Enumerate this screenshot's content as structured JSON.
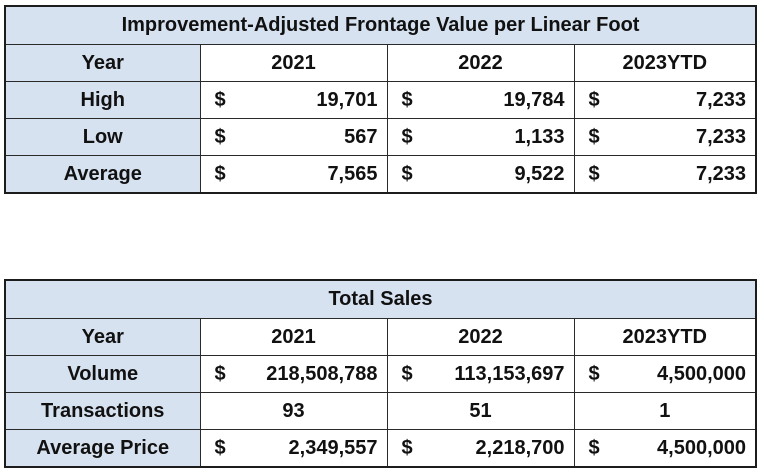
{
  "frontage_table": {
    "title": "Improvement-Adjusted Frontage Value per Linear Foot",
    "header": {
      "label": "Year",
      "years": [
        "2021",
        "2022",
        "2023YTD"
      ]
    },
    "rows": [
      {
        "label": "High",
        "currency": "$",
        "values": [
          "19,701",
          "19,784",
          "7,233"
        ]
      },
      {
        "label": "Low",
        "currency": "$",
        "values": [
          "567",
          "1,133",
          "7,233"
        ]
      },
      {
        "label": "Average",
        "currency": "$",
        "values": [
          "7,565",
          "9,522",
          "7,233"
        ]
      }
    ]
  },
  "sales_table": {
    "title": "Total Sales",
    "header": {
      "label": "Year",
      "years": [
        "2021",
        "2022",
        "2023YTD"
      ]
    },
    "volume": {
      "label": "Volume",
      "currency": "$",
      "values": [
        "218,508,788",
        "113,153,697",
        "4,500,000"
      ]
    },
    "transactions": {
      "label": "Transactions",
      "values": [
        "93",
        "51",
        "1"
      ]
    },
    "average_price": {
      "label": "Average Price",
      "currency": "$",
      "values": [
        "2,349,557",
        "2,218,700",
        "4,500,000"
      ]
    }
  },
  "colors": {
    "header_fill": "#d7e2f1",
    "border": "#1c1c1c"
  }
}
